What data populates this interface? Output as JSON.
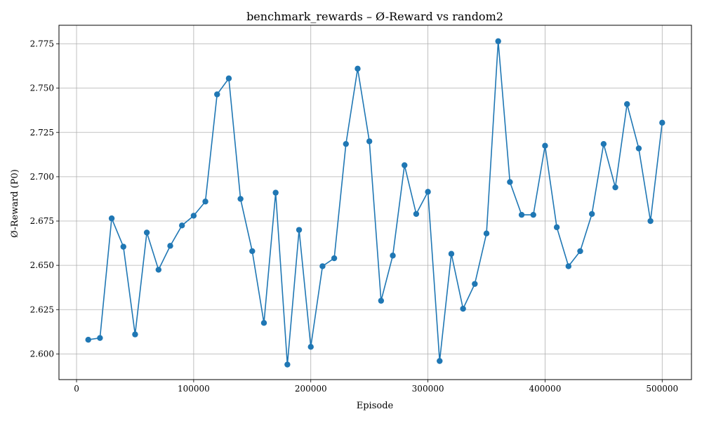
{
  "chart_data": {
    "type": "line",
    "title": "benchmark_rewards – Ø-Reward vs random2",
    "xlabel": "Episode",
    "ylabel": "Ø-Reward (P0)",
    "xlim": [
      -15000,
      525000
    ],
    "ylim": [
      2.5855,
      2.7855
    ],
    "xticks": [
      0,
      100000,
      200000,
      300000,
      400000,
      500000
    ],
    "yticks": [
      2.6,
      2.625,
      2.65,
      2.675,
      2.7,
      2.725,
      2.75,
      2.775
    ],
    "grid": true,
    "line_color": "#1f77b4",
    "marker": "circle",
    "series": [
      {
        "x": [
          10000,
          20000,
          30000,
          40000,
          50000,
          60000,
          70000,
          80000,
          90000,
          100000,
          110000,
          120000,
          130000,
          140000,
          150000,
          160000,
          170000,
          180000,
          190000,
          200000,
          210000,
          220000,
          230000,
          240000,
          250000,
          260000,
          270000,
          280000,
          290000,
          300000,
          310000,
          320000,
          330000,
          340000,
          350000,
          360000,
          370000,
          380000,
          390000,
          400000,
          410000,
          420000,
          430000,
          440000,
          450000,
          460000,
          470000,
          480000,
          490000,
          500000
        ],
        "values": [
          2.608,
          2.609,
          2.6765,
          2.6605,
          2.611,
          2.6685,
          2.6475,
          2.661,
          2.6725,
          2.678,
          2.686,
          2.7465,
          2.7555,
          2.6875,
          2.658,
          2.6175,
          2.691,
          2.594,
          2.67,
          2.604,
          2.6495,
          2.654,
          2.7185,
          2.761,
          2.72,
          2.63,
          2.6555,
          2.7065,
          2.679,
          2.6915,
          2.596,
          2.6565,
          2.6255,
          2.6395,
          2.668,
          2.7765,
          2.697,
          2.6785,
          2.6785,
          2.7175,
          2.6715,
          2.6495,
          2.658,
          2.679,
          2.7185,
          2.694,
          2.741,
          2.716,
          2.675,
          2.7305
        ]
      }
    ]
  }
}
